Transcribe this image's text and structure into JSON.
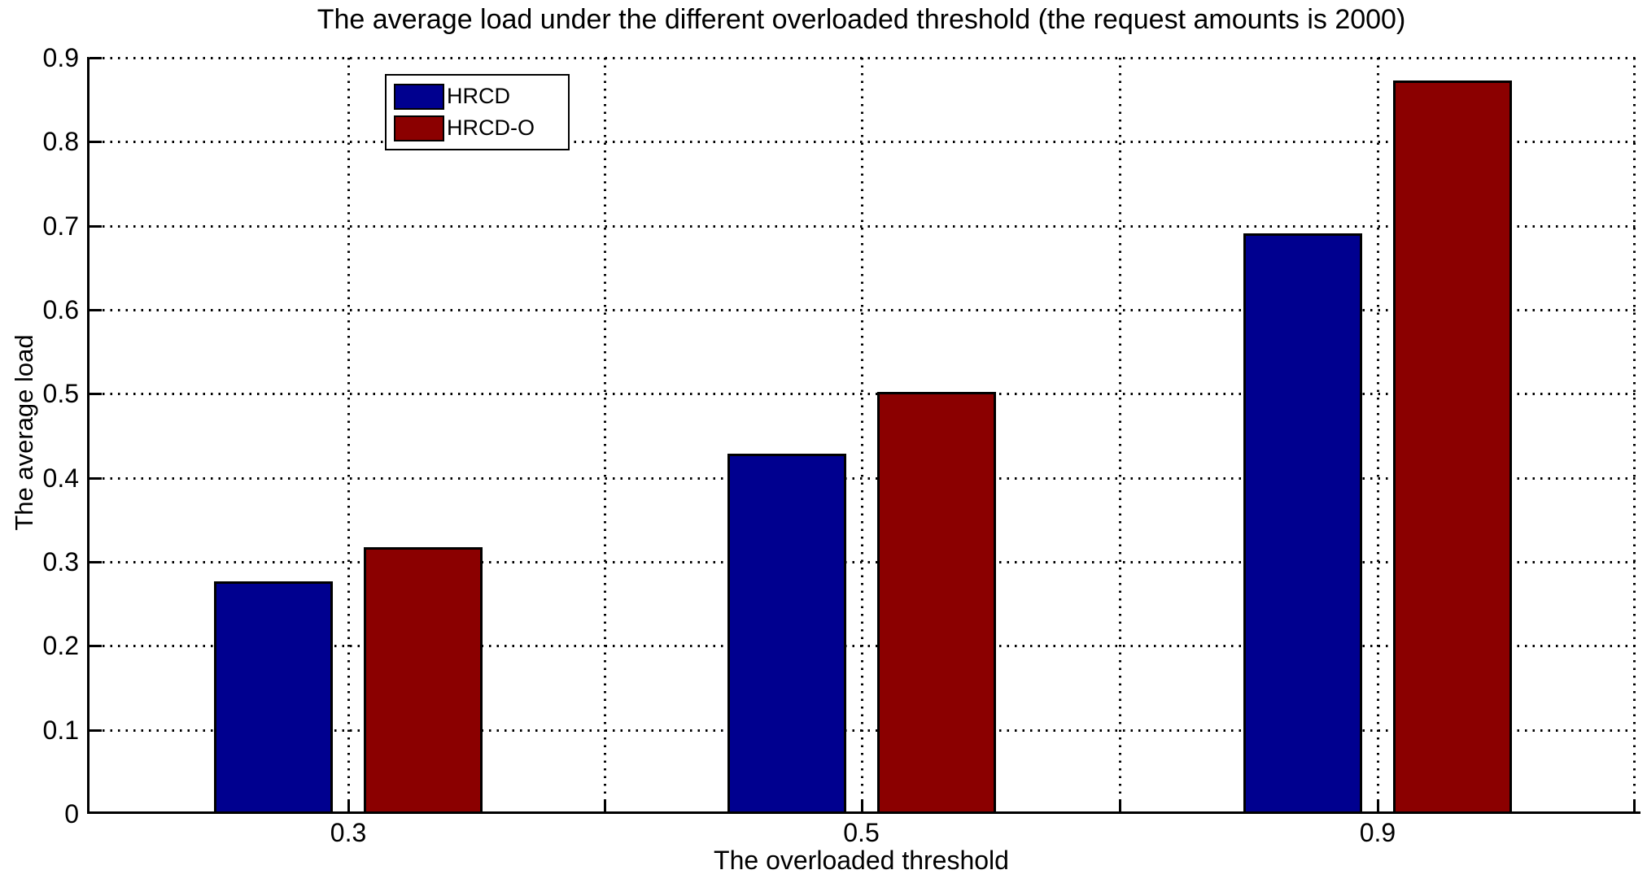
{
  "chart_data": {
    "type": "bar",
    "title": "The average load under the different overloaded threshold (the request amounts is 2000)",
    "xlabel": "The overloaded threshold",
    "ylabel": "The average load",
    "categories": [
      "0.3",
      "0.5",
      "0.9"
    ],
    "series": [
      {
        "name": "HRCD",
        "color": "#00008F",
        "values": [
          0.277,
          0.429,
          0.691
        ]
      },
      {
        "name": "HRCD-O",
        "color": "#8B0000",
        "values": [
          0.317,
          0.502,
          0.873
        ]
      }
    ],
    "ylim": [
      0,
      0.9
    ],
    "ytick_labels": [
      "0",
      "0.1",
      "0.2",
      "0.3",
      "0.4",
      "0.5",
      "0.6",
      "0.7",
      "0.8",
      "0.9"
    ],
    "grid": "dotted",
    "legend_position": "upper-left-inside",
    "axis_color": "#000000",
    "background_color": "#FFFFFF"
  }
}
